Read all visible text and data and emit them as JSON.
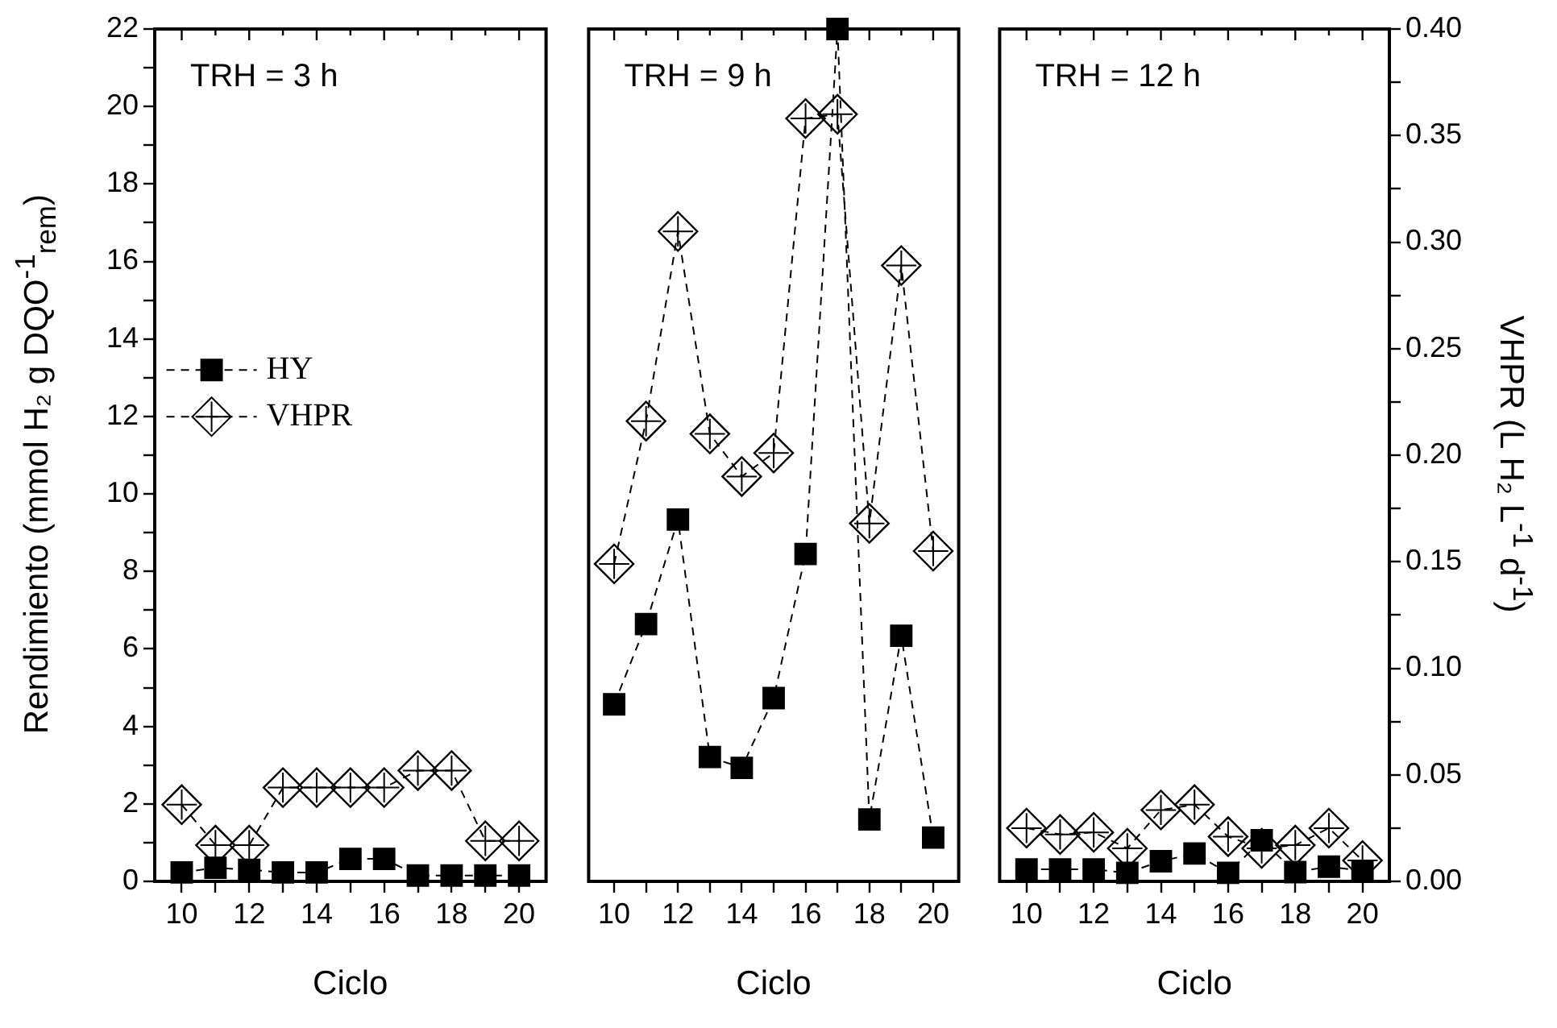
{
  "chart_data": [
    {
      "type": "line",
      "annotations": [
        "TRH = 3 h"
      ],
      "xlabel": "Ciclo",
      "ylabel": "Rendimiento (mmol H₂ g DQO$^{-1}$$_{rem}$)",
      "x": [
        10,
        11,
        12,
        13,
        14,
        15,
        16,
        17,
        18,
        19,
        20
      ],
      "series": [
        {
          "name": "HY",
          "color": "#000000",
          "marker": "square",
          "values": [
            0.23,
            0.35,
            0.3,
            0.23,
            0.23,
            0.58,
            0.58,
            0.15,
            0.15,
            0.15,
            0.15
          ]
        },
        {
          "name": "VHPR",
          "color": "#000000",
          "marker": "diamond",
          "axis": "y2",
          "values": [
            0.036,
            0.017,
            0.017,
            0.044,
            0.044,
            0.044,
            0.044,
            0.052,
            0.052,
            0.019,
            0.019
          ]
        }
      ],
      "xlim": [
        9.2,
        20.8
      ],
      "xticks": [
        10,
        {
          "value": 11,
          "label": null
        },
        12,
        {
          "value": 13,
          "label": null
        },
        14,
        {
          "value": 15,
          "label": null
        },
        16,
        {
          "value": 17,
          "label": null
        },
        18,
        {
          "value": 19,
          "label": null
        },
        20
      ],
      "ylim": [
        0,
        22
      ],
      "yticks": [
        0,
        {
          "value": 1,
          "label": null
        },
        2,
        {
          "value": 3,
          "label": null
        },
        4,
        {
          "value": 5,
          "label": null
        },
        6,
        {
          "value": 7,
          "label": null
        },
        8,
        {
          "value": 9,
          "label": null
        },
        10,
        {
          "value": 11,
          "label": null
        },
        12,
        {
          "value": 13,
          "label": null
        },
        14,
        {
          "value": 15,
          "label": null
        },
        16,
        {
          "value": 17,
          "label": null
        },
        18,
        {
          "value": 19,
          "label": null
        },
        20,
        {
          "value": 21,
          "label": null
        },
        22
      ],
      "y2lim": [
        0,
        0.4
      ],
      "tick_labels": "xy",
      "legend": "left",
      "line_style": "dashed",
      "grid": false
    },
    {
      "type": "line",
      "annotations": [
        "TRH = 9 h"
      ],
      "xlabel": "Ciclo",
      "x": [
        10,
        11,
        12,
        13,
        14,
        15,
        16,
        17,
        18,
        19,
        20
      ],
      "series": [
        {
          "color": "#000000",
          "marker": "square",
          "values": [
            4.57,
            6.64,
            9.34,
            3.21,
            2.93,
            4.73,
            8.45,
            22,
            1.6,
            6.34,
            1.13
          ]
        },
        {
          "color": "#000000",
          "marker": "diamond",
          "axis": "y2",
          "values": [
            0.149,
            0.216,
            0.305,
            0.21,
            0.19,
            0.201,
            0.358,
            0.36,
            0.168,
            0.289,
            0.155
          ]
        }
      ],
      "xlim": [
        9.2,
        20.8
      ],
      "xticks": [
        10,
        {
          "value": 11,
          "label": null
        },
        12,
        {
          "value": 13,
          "label": null
        },
        14,
        {
          "value": 15,
          "label": null
        },
        16,
        {
          "value": 17,
          "label": null
        },
        18,
        {
          "value": 19,
          "label": null
        },
        20
      ],
      "ylim": [
        0,
        22
      ],
      "y2lim": [
        0,
        0.4
      ],
      "tick_labels": "x",
      "line_style": "dashed",
      "grid": false
    },
    {
      "type": "line",
      "annotations": [
        "TRH = 12 h"
      ],
      "xlabel": "Ciclo",
      "y2label": "VHPR (L H₂ L$^{-1}$ d$^{-1}$)",
      "x": [
        10,
        11,
        12,
        13,
        14,
        15,
        16,
        17,
        18,
        19,
        20
      ],
      "series": [
        {
          "color": "#000000",
          "marker": "square",
          "values": [
            0.31,
            0.31,
            0.31,
            0.22,
            0.52,
            0.72,
            0.22,
            1.06,
            0.24,
            0.38,
            0.27
          ]
        },
        {
          "color": "#000000",
          "marker": "diamond",
          "axis": "y2",
          "values": [
            0.025,
            0.022,
            0.023,
            0.0155,
            0.0335,
            0.036,
            0.021,
            0.0155,
            0.017,
            0.025,
            0.0098
          ]
        }
      ],
      "xlim": [
        9.2,
        20.8
      ],
      "xticks": [
        10,
        {
          "value": 11,
          "label": null
        },
        12,
        {
          "value": 13,
          "label": null
        },
        14,
        {
          "value": 15,
          "label": null
        },
        16,
        {
          "value": 17,
          "label": null
        },
        18,
        {
          "value": 19,
          "label": null
        },
        20
      ],
      "ylim": [
        0,
        22
      ],
      "y2lim": [
        0,
        0.4
      ],
      "y2ticks": [
        {
          "value": 0,
          "label": "0.00"
        },
        {
          "value": 0.025,
          "label": null
        },
        {
          "value": 0.05,
          "label": "0.05"
        },
        {
          "value": 0.075,
          "label": null
        },
        {
          "value": 0.1,
          "label": "0.10"
        },
        {
          "value": 0.125,
          "label": null
        },
        {
          "value": 0.15,
          "label": "0.15"
        },
        {
          "value": 0.175,
          "label": null
        },
        {
          "value": 0.2,
          "label": "0.20"
        },
        {
          "value": 0.225,
          "label": null
        },
        {
          "value": 0.25,
          "label": "0.25"
        },
        {
          "value": 0.275,
          "label": null
        },
        {
          "value": 0.3,
          "label": "0.30"
        },
        {
          "value": 0.325,
          "label": null
        },
        {
          "value": 0.35,
          "label": "0.35"
        },
        {
          "value": 0.375,
          "label": null
        },
        {
          "value": 0.4,
          "label": "0.40"
        }
      ],
      "tick_labels": "xy2",
      "line_style": "dashed",
      "grid": false
    }
  ]
}
